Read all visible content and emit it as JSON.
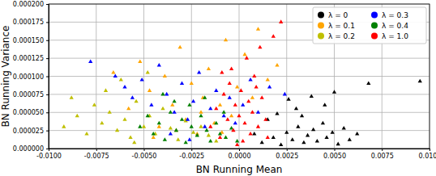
{
  "chart_data": {
    "type": "scatter",
    "x_label": "BN Running Mean",
    "y_label": "BN Running Variance",
    "xlim": [
      -0.01,
      0.01
    ],
    "ylim": [
      0,
      0.0002
    ],
    "xticks": [
      {
        "value": -0.01,
        "label": "-0.0100"
      },
      {
        "value": -0.0075,
        "label": "-0.0075"
      },
      {
        "value": -0.005,
        "label": "-0.0050"
      },
      {
        "value": -0.0025,
        "label": "-0.0025"
      },
      {
        "value": 0,
        "label": "0.0000"
      },
      {
        "value": 0.0025,
        "label": "0.0025"
      },
      {
        "value": 0.005,
        "label": "0.0050"
      },
      {
        "value": 0.0075,
        "label": "0.0075"
      },
      {
        "value": 0.01,
        "label": "0.0100"
      }
    ],
    "yticks": [
      {
        "value": 0,
        "label": "0.000000"
      },
      {
        "value": 2.5e-05,
        "label": "0.000025"
      },
      {
        "value": 5e-05,
        "label": "0.000050"
      },
      {
        "value": 7.5e-05,
        "label": "0.000075"
      },
      {
        "value": 0.0001,
        "label": "0.000100"
      },
      {
        "value": 0.000125,
        "label": "0.000125"
      },
      {
        "value": 0.00015,
        "label": "0.000150"
      },
      {
        "value": 0.000175,
        "label": "0.000175"
      },
      {
        "value": 0.0002,
        "label": "0.000200"
      }
    ],
    "grid": true,
    "legend": "upper right",
    "marker": "triangle",
    "series": [
      {
        "name": "λ = 0",
        "color": "#000000",
        "x": [
          0.0012,
          0.0018,
          0.0022,
          0.0025,
          0.0028,
          0.0031,
          0.0034,
          0.0036,
          0.0039,
          0.0041,
          0.0044,
          0.0046,
          0.0049,
          0.0052,
          0.0055,
          0.0058,
          0.0062,
          0.0015,
          0.002,
          0.003,
          0.0045,
          0.0038,
          0.0068,
          0.0095,
          0.005,
          0.0026,
          0.0008,
          0.0033
        ],
        "values": [
          8e-06,
          1.5e-05,
          5e-06,
          2.2e-05,
          1.2e-05,
          3e-05,
          8e-06,
          1.8e-05,
          2.6e-05,
          1e-05,
          3.5e-05,
          1.5e-05,
          2.2e-05,
          6e-06,
          2.8e-05,
          1.2e-05,
          2e-05,
          4e-05,
          4.8e-05,
          5.5e-05,
          6e-05,
          7.2e-05,
          9e-05,
          9.3e-05,
          7.8e-05,
          6.8e-05,
          2e-05,
          4.5e-05
        ]
      },
      {
        "name": "λ = 0.1",
        "color": "#ffa500",
        "x": [
          -0.0058,
          -0.0052,
          -0.0047,
          -0.0042,
          -0.0039,
          -0.0035,
          -0.0031,
          -0.0028,
          -0.0025,
          -0.0022,
          -0.0019,
          -0.0016,
          -0.0013,
          -0.001,
          -0.0007,
          -0.0004,
          -0.0001,
          0.0003,
          0.0007,
          0.001,
          0.0015,
          -0.0066,
          -0.0045,
          -0.0033,
          -0.002,
          0.002,
          -0.0009
        ],
        "values": [
          5.5e-05,
          0.00012,
          8e-05,
          3e-05,
          0.0001,
          6e-05,
          0.00014,
          4e-05,
          9e-05,
          2e-05,
          7e-05,
          0.00011,
          3.5e-05,
          6e-05,
          0.00015,
          4.5e-05,
          8.5e-05,
          0.00013,
          7e-05,
          0.000165,
          9.5e-05,
          0.000105,
          1.5e-05,
          2.5e-05,
          5e-05,
          0.000115,
          2.2e-05
        ]
      },
      {
        "name": "λ = 0.2",
        "color": "#bfbf00",
        "x": [
          -0.0092,
          -0.0085,
          -0.008,
          -0.0076,
          -0.0072,
          -0.0068,
          -0.0064,
          -0.006,
          -0.0057,
          -0.0054,
          -0.005,
          -0.0047,
          -0.0044,
          -0.004,
          -0.0036,
          -0.0032,
          -0.0028,
          -0.0024,
          -0.002,
          -0.0016,
          -0.007,
          -0.0062,
          -0.0048,
          -0.0088,
          -0.0055,
          -0.0012
        ],
        "values": [
          3e-05,
          4.5e-05,
          2e-05,
          6e-05,
          3.5e-05,
          5e-05,
          2.5e-05,
          4e-05,
          1.5e-05,
          6.5e-05,
          3e-05,
          4.5e-05,
          2e-05,
          5.5e-05,
          2.8e-05,
          1.2e-05,
          3.8e-05,
          2.2e-05,
          3e-05,
          1.8e-05,
          8e-05,
          9.5e-05,
          0.000105,
          7e-05,
          8e-06,
          1e-05
        ]
      },
      {
        "name": "λ = 0.3",
        "color": "#0000ff",
        "x": [
          -0.0078,
          -0.0065,
          -0.006,
          -0.0056,
          -0.0051,
          -0.0046,
          -0.0042,
          -0.0038,
          -0.0034,
          -0.003,
          -0.0027,
          -0.0024,
          -0.0021,
          -0.0018,
          -0.0015,
          -0.0012,
          -0.0008,
          -0.0005,
          -0.0002,
          0.0002,
          0.0006,
          0.001,
          0.0016,
          0.0024,
          -0.0036,
          -0.0026
        ],
        "values": [
          0.00012,
          0.0001,
          8.5e-05,
          7e-05,
          9.5e-05,
          6e-05,
          0.000115,
          7.5e-05,
          5e-05,
          9e-05,
          4e-05,
          6.5e-05,
          0.000105,
          3e-05,
          5.5e-05,
          8e-05,
          4.5e-05,
          7e-05,
          3.5e-05,
          6e-05,
          9.5e-05,
          5e-05,
          8.5e-05,
          7.5e-05,
          2e-05,
          1.2e-05
        ]
      },
      {
        "name": "λ = 0.4",
        "color": "#008000",
        "x": [
          -0.0052,
          -0.0048,
          -0.0045,
          -0.0042,
          -0.0039,
          -0.0036,
          -0.0033,
          -0.003,
          -0.0028,
          -0.0025,
          -0.0022,
          -0.002,
          -0.0017,
          -0.0015,
          -0.0012,
          -0.001,
          -0.0007,
          -0.0004,
          -0.0001,
          -0.0034,
          -0.0026,
          -0.0018,
          -0.004,
          -0.0008
        ],
        "values": [
          3e-05,
          4.5e-05,
          2e-05,
          3.5e-05,
          1.2e-05,
          5e-05,
          2.5e-05,
          4e-05,
          8e-06,
          3e-05,
          1.8e-05,
          4.5e-05,
          2.5e-05,
          1e-05,
          3.5e-05,
          2e-05,
          1.5e-05,
          2.8e-05,
          1e-05,
          6.5e-05,
          6e-05,
          7e-05,
          7.5e-05,
          5e-05
        ]
      },
      {
        "name": "λ = 1.0",
        "color": "#ff0000",
        "x": [
          -0.0015,
          -0.0012,
          -0.001,
          -0.0008,
          -0.0006,
          -0.0005,
          -0.0003,
          -0.0002,
          0.0,
          0.0001,
          0.0002,
          0.0003,
          0.0005,
          0.0006,
          0.0007,
          0.0009,
          0.001,
          0.0012,
          0.0014,
          -0.0004,
          0.0004,
          0.0011,
          -0.0009,
          0.0018,
          0.0022,
          0.0008,
          -0.0001,
          0.0015
        ],
        "values": [
          3e-05,
          5.5e-05,
          1.5e-05,
          7.5e-05,
          4e-05,
          9e-05,
          2.5e-05,
          6e-05,
          4.5e-05,
          8e-05,
          1e-05,
          3.5e-05,
          6.5e-05,
          2e-05,
          5e-05,
          8.5e-05,
          3e-05,
          7e-05,
          4e-05,
          0.00011,
          0.000125,
          0.00014,
          0.000105,
          0.000155,
          0.000175,
          0.0001,
          5e-06,
          1.5e-05
        ]
      }
    ]
  }
}
